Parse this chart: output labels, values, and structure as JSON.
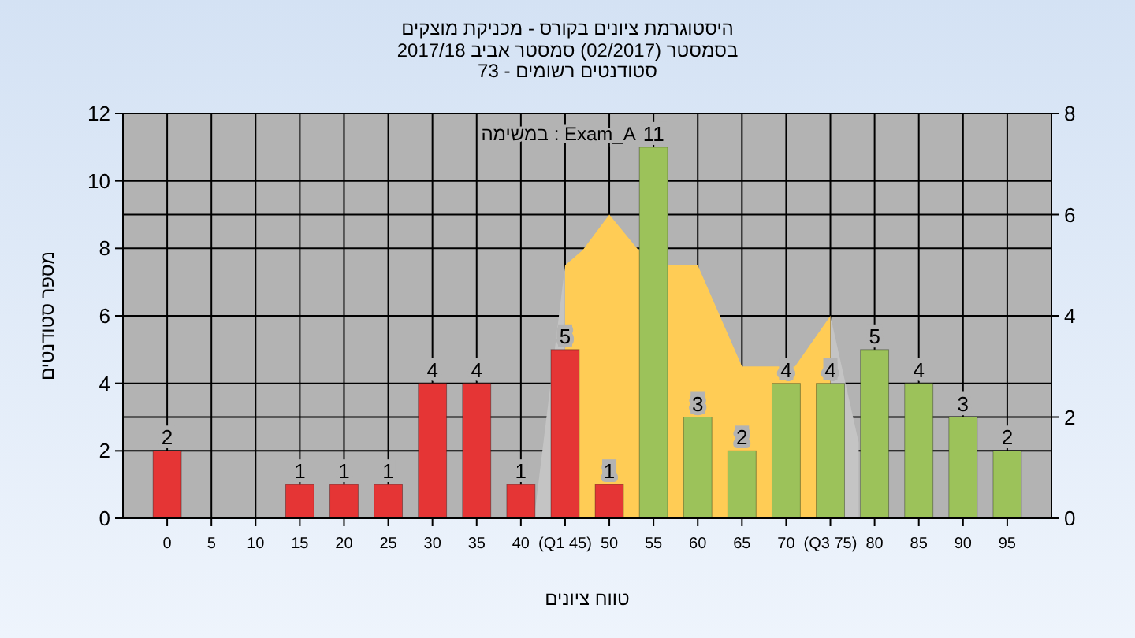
{
  "chart_data": {
    "type": "bar",
    "title": "היסטוגרמת ציונים בקורס - מכניקת מוצקים",
    "subtitle": "בסמסטר  (02/2017)  סמסטר אביב 2017/18\nסטודנטים רשומים - 73",
    "xlabel": "טווח ציונים",
    "ylabel": "מספר סטודנטים",
    "annotations": [
      "במשימה : Exam_A"
    ],
    "x": [
      0,
      5,
      10,
      15,
      20,
      25,
      30,
      35,
      40,
      45,
      50,
      55,
      60,
      65,
      70,
      75,
      80,
      85,
      90,
      95
    ],
    "series": [
      {
        "type": "area",
        "axis": "y2",
        "color": "#c4c4c4",
        "x": [
          41.5,
          45
        ],
        "values": [
          0,
          5
        ]
      },
      {
        "type": "area",
        "axis": "y2",
        "color": "#c4c4c4",
        "x": [
          75,
          78.2
        ],
        "values": [
          4,
          1.5
        ]
      },
      {
        "type": "area",
        "axis": "y2",
        "color": "#ffcc55",
        "x": [
          45,
          47,
          50,
          53.3,
          56.7,
          60,
          65,
          71,
          75
        ],
        "values": [
          5,
          5.3,
          6,
          5.3,
          5,
          5,
          3,
          3,
          4
        ]
      },
      {
        "values": [
          2,
          0,
          0,
          1,
          1,
          1,
          4,
          4,
          1,
          5,
          1,
          11,
          3,
          2,
          4,
          4,
          5,
          4,
          3,
          2
        ],
        "value_labels": [
          "2",
          null,
          null,
          "1",
          "1",
          "1",
          "4",
          "4",
          "1",
          "5",
          "1",
          "11",
          "3",
          "2",
          "4",
          "4",
          "5",
          "4",
          "3",
          "2"
        ],
        "colors": [
          "#e53535",
          "#e53535",
          "#e53535",
          "#e53535",
          "#e53535",
          "#e53535",
          "#e53535",
          "#e53535",
          "#e53535",
          "#e53535",
          "#e53535",
          "#9cc25a",
          "#9cc25a",
          "#9cc25a",
          "#9cc25a",
          "#9cc25a",
          "#9cc25a",
          "#9cc25a",
          "#9cc25a",
          "#9cc25a"
        ]
      }
    ],
    "xlim": [
      -5,
      100
    ],
    "xticks": [
      0,
      5,
      10,
      15,
      20,
      25,
      30,
      35,
      40,
      {
        "value": 45,
        "label": "(Q1 45)"
      },
      50,
      55,
      60,
      65,
      70,
      {
        "value": 75,
        "label": "(Q3 75)"
      },
      80,
      85,
      90,
      95
    ],
    "ylim": [
      0,
      12
    ],
    "yticks": [
      0,
      2,
      4,
      6,
      8,
      10,
      12
    ],
    "y2lim": [
      0,
      8
    ],
    "y2ticks": [
      0,
      2,
      4,
      6,
      8
    ],
    "grid": true
  }
}
